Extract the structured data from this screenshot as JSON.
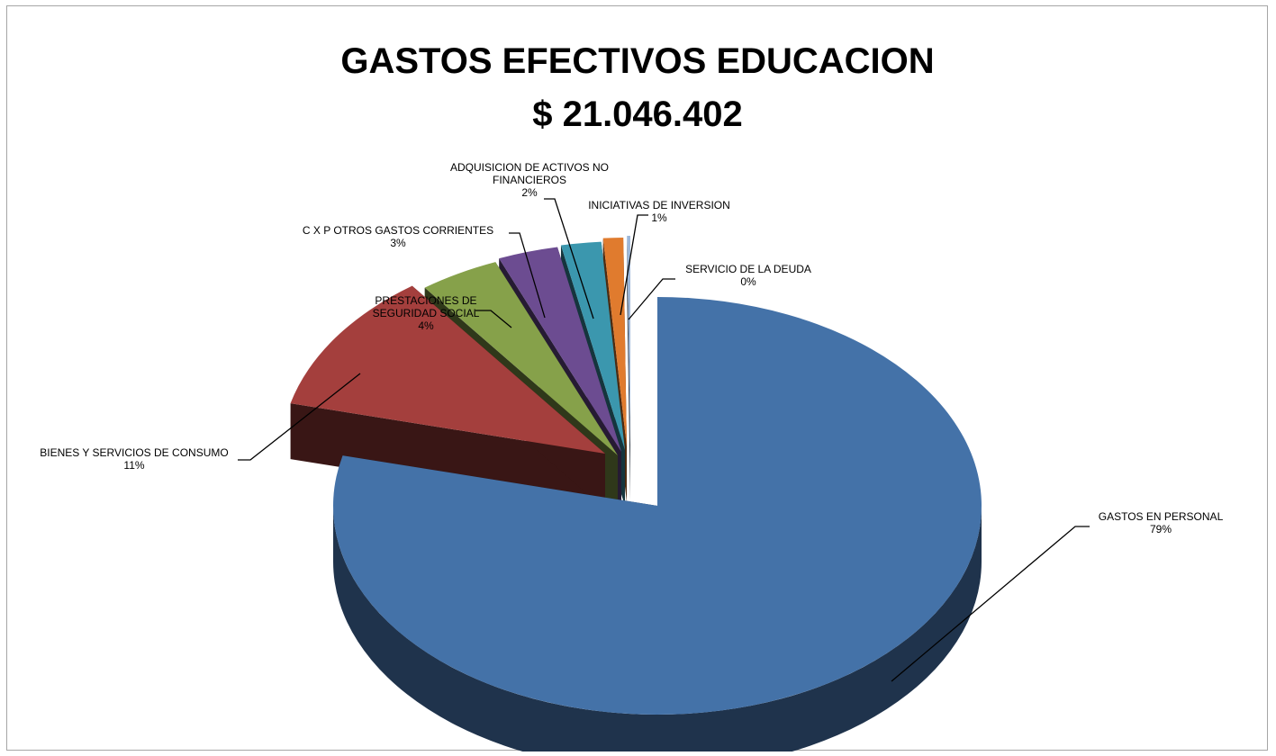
{
  "chart_data": {
    "type": "pie",
    "title": "GASTOS EFECTIVOS EDUCACION",
    "subtitle": "$ 21.046.402",
    "slices": [
      {
        "label": "GASTOS EN PERSONAL",
        "value": 79,
        "pct_label": "79%",
        "color": "#4472a8"
      },
      {
        "label": "BIENES Y SERVICIOS DE CONSUMO",
        "value": 11,
        "pct_label": "11%",
        "color": "#a43f3d"
      },
      {
        "label": "PRESTACIONES DE SEGURIDAD SOCIAL",
        "value": 4,
        "pct_label": "4%",
        "color": "#86a14a"
      },
      {
        "label": "C X P OTROS GASTOS CORRIENTES",
        "value": 3,
        "pct_label": "3%",
        "color": "#6c4c91"
      },
      {
        "label": "ADQUISICION DE ACTIVOS NO FINANCIEROS",
        "value": 2,
        "pct_label": "2%",
        "color": "#3b97ae"
      },
      {
        "label": "INICIATIVAS DE INVERSION",
        "value": 1,
        "pct_label": "1%",
        "color": "#e07b2e"
      },
      {
        "label": "SERVICIO DE LA DEUDA",
        "value": 0,
        "pct_label": "0%",
        "color": "#9db8da"
      }
    ],
    "legend": "none",
    "style": "3d-exploded"
  }
}
